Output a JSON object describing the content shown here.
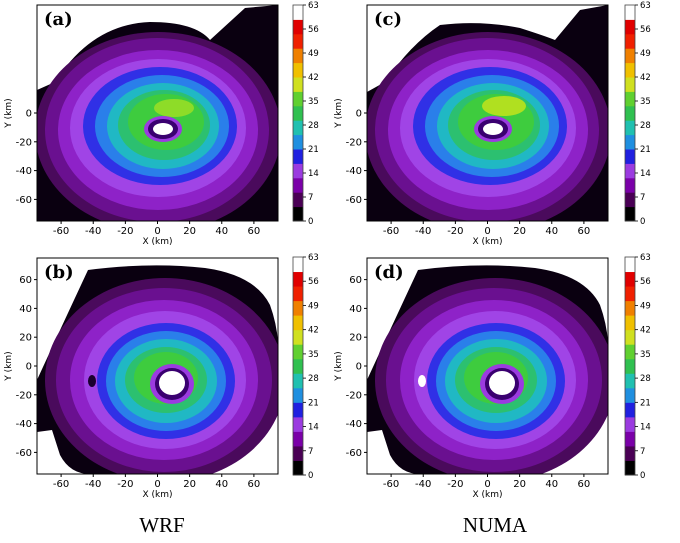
{
  "figure": {
    "columns": [
      "WRF",
      "NUMA"
    ]
  },
  "colorbar": {
    "ticks": [
      "63",
      "56",
      "49",
      "42",
      "35",
      "28",
      "21",
      "14",
      "7",
      "0"
    ],
    "colors": [
      "#000000",
      "#4a0055",
      "#7a00a8",
      "#9b3be0",
      "#2020e0",
      "#1f8fe0",
      "#20c0b0",
      "#30c050",
      "#60d030",
      "#d0e020",
      "#f0c000",
      "#f08000",
      "#f02000",
      "#e00000",
      "#ffffff"
    ]
  },
  "chart_data": [
    {
      "type": "heatmap",
      "panel": "(a)",
      "model": "WRF",
      "xlabel": "X (km)",
      "ylabel": "Y (km)",
      "xticks": [
        -60,
        -40,
        -20,
        0,
        20,
        40,
        60
      ],
      "yticks": [
        0,
        -20,
        -40,
        -60
      ],
      "xlim": [
        -75,
        75
      ],
      "ylim": [
        -75,
        75
      ],
      "colorbar_range": [
        0,
        63
      ],
      "colorbar_ticks": [
        0,
        7,
        14,
        21,
        28,
        35,
        42,
        49,
        56,
        63
      ],
      "features": {
        "eye_center_km": [
          3,
          -12
        ],
        "max_value_region": "north-northeast eyewall"
      }
    },
    {
      "type": "heatmap",
      "panel": "(b)",
      "model": "WRF",
      "xlabel": "X (km)",
      "ylabel": "Y (km)",
      "xticks": [
        -60,
        -40,
        -20,
        0,
        20,
        40,
        60
      ],
      "yticks": [
        60,
        40,
        20,
        0,
        -20,
        -40,
        -60
      ],
      "xlim": [
        -75,
        75
      ],
      "ylim": [
        -75,
        75
      ],
      "colorbar_range": [
        0,
        63
      ],
      "colorbar_ticks": [
        0,
        7,
        14,
        21,
        28,
        35,
        42,
        49,
        56,
        63
      ],
      "features": {
        "eye_center_km": [
          8,
          -15
        ]
      }
    },
    {
      "type": "heatmap",
      "panel": "(c)",
      "model": "NUMA",
      "xlabel": "X (km)",
      "ylabel": "Y (km)",
      "xticks": [
        -60,
        -40,
        -20,
        0,
        20,
        40,
        60
      ],
      "yticks": [
        0,
        -20,
        -40,
        -60
      ],
      "xlim": [
        -75,
        75
      ],
      "ylim": [
        -75,
        75
      ],
      "colorbar_range": [
        0,
        63
      ],
      "colorbar_ticks": [
        0,
        7,
        14,
        21,
        28,
        35,
        42,
        49,
        56,
        63
      ],
      "features": {
        "eye_center_km": [
          3,
          -12
        ],
        "max_value_region": "north-northeast eyewall"
      }
    },
    {
      "type": "heatmap",
      "panel": "(d)",
      "model": "NUMA",
      "xlabel": "X (km)",
      "ylabel": "Y (km)",
      "xticks": [
        -60,
        -40,
        -20,
        0,
        20,
        40,
        60
      ],
      "yticks": [
        60,
        40,
        20,
        0,
        -20,
        -40,
        -60
      ],
      "xlim": [
        -75,
        75
      ],
      "ylim": [
        -75,
        75
      ],
      "colorbar_range": [
        0,
        63
      ],
      "colorbar_ticks": [
        0,
        7,
        14,
        21,
        28,
        35,
        42,
        49,
        56,
        63
      ],
      "features": {
        "eye_center_km": [
          10,
          -15
        ]
      }
    }
  ]
}
